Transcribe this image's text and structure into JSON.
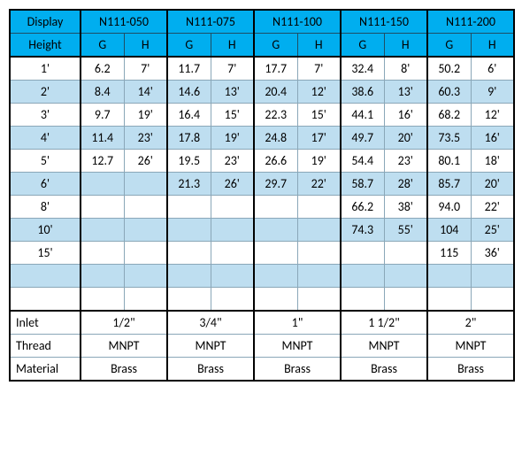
{
  "col1_header_top": "Display",
  "col1_header_bot": "Height",
  "models": [
    "N111-050",
    "N111-075",
    "N111-100",
    "N111-150",
    "N111-200"
  ],
  "sub_g": "G",
  "sub_h": "H",
  "row_heights": [
    "1'",
    "2'",
    "3'",
    "4'",
    "5'",
    "6'",
    "8'",
    "10'",
    "15'",
    "",
    ""
  ],
  "data_rows": [
    [
      "6.2",
      "7'",
      "11.7",
      "7'",
      "17.7",
      "7'",
      "32.4",
      "8'",
      "50.2",
      "6'"
    ],
    [
      "8.4",
      "14'",
      "14.6",
      "13'",
      "20.4",
      "12'",
      "38.6",
      "13'",
      "60.3",
      "9'"
    ],
    [
      "9.7",
      "19'",
      "16.4",
      "15'",
      "22.3",
      "15'",
      "44.1",
      "16'",
      "68.2",
      "12'"
    ],
    [
      "11.4",
      "23'",
      "17.8",
      "19'",
      "24.8",
      "17'",
      "49.7",
      "20'",
      "73.5",
      "16'"
    ],
    [
      "12.7",
      "26'",
      "19.5",
      "23'",
      "26.6",
      "19'",
      "54.4",
      "23'",
      "80.1",
      "18'"
    ],
    [
      "",
      "",
      "21.3",
      "26'",
      "29.7",
      "22'",
      "58.7",
      "28'",
      "85.7",
      "20'"
    ],
    [
      "",
      "",
      "",
      "",
      "",
      "",
      "66.2",
      "38'",
      "94.0",
      "22'"
    ],
    [
      "",
      "",
      "",
      "",
      "",
      "",
      "74.3",
      "55'",
      "104",
      "25'"
    ],
    [
      "",
      "",
      "",
      "",
      "",
      "",
      "",
      "",
      "115",
      "36'"
    ],
    [
      "",
      "",
      "",
      "",
      "",
      "",
      "",
      "",
      "",
      ""
    ],
    [
      "",
      "",
      "",
      "",
      "",
      "",
      "",
      "",
      "",
      ""
    ]
  ],
  "footer": {
    "labels": [
      "Inlet",
      "Thread",
      "Material"
    ],
    "values": [
      [
        "1/2\"",
        "3/4\"",
        "1\"",
        "1 1/2\"",
        "2\""
      ],
      [
        "MNPT",
        "MNPT",
        "MNPT",
        "MNPT",
        "MNPT"
      ],
      [
        "Brass",
        "Brass",
        "Brass",
        "Brass",
        "Brass"
      ]
    ]
  },
  "colors": {
    "header_bg": "#00aeef",
    "row_even_bg": "#bedef0",
    "row_odd_bg": "#ffffff",
    "grid": "#8aa7b8",
    "thick": "#000000"
  }
}
